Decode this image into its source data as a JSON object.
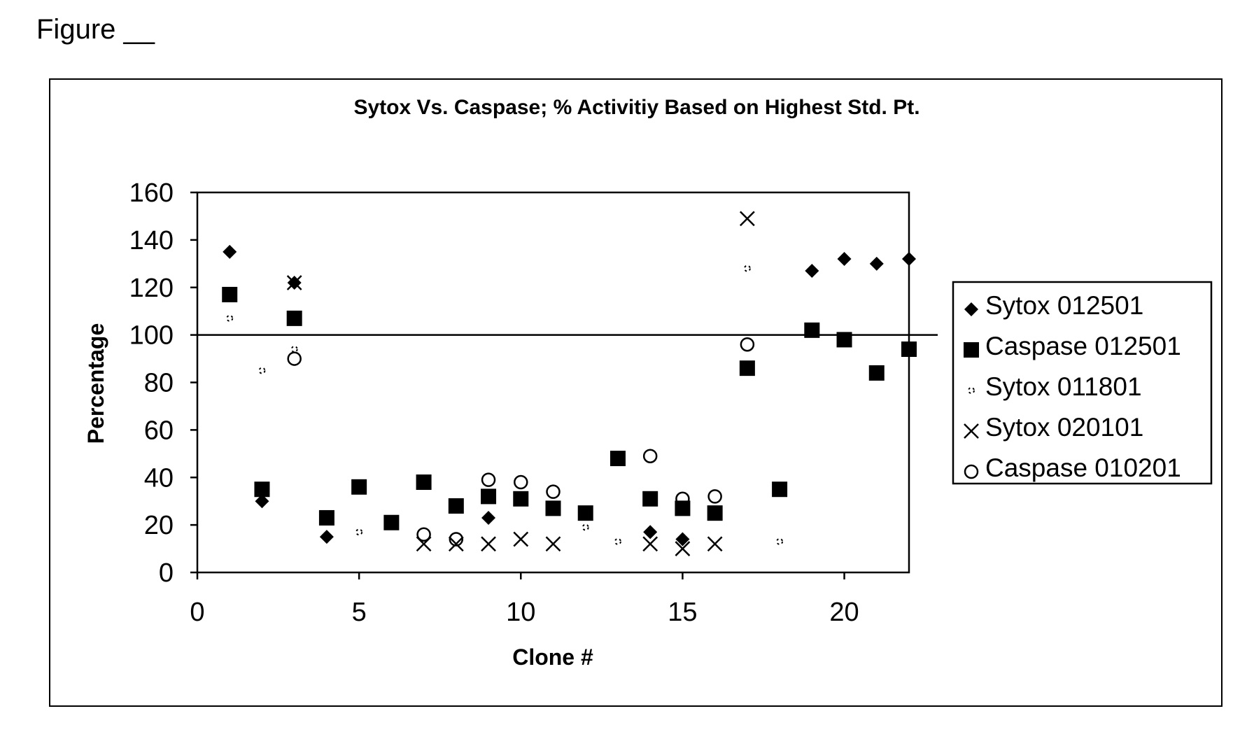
{
  "figure_label": "Figure __",
  "chart_data": {
    "type": "scatter",
    "title": "Sytox Vs. Caspase; % Activitiy Based on Highest Std. Pt.",
    "xlabel": "Clone #",
    "ylabel": "Percentage",
    "xlim": [
      0,
      22
    ],
    "ylim": [
      0,
      160
    ],
    "x_ticks": [
      0,
      5,
      10,
      15,
      20
    ],
    "y_ticks": [
      0,
      20,
      40,
      60,
      80,
      100,
      120,
      140,
      160
    ],
    "reference_line": 100,
    "grid": false,
    "legend_position": "right",
    "series": [
      {
        "name": "Sytox 012501",
        "marker": "diamond",
        "color": "#000000",
        "points": [
          [
            1,
            135
          ],
          [
            2,
            30
          ],
          [
            3,
            122
          ],
          [
            4,
            15
          ],
          [
            9,
            23
          ],
          [
            14,
            17
          ],
          [
            15,
            14
          ],
          [
            19,
            127
          ],
          [
            20,
            132
          ],
          [
            21,
            130
          ],
          [
            22,
            132
          ]
        ]
      },
      {
        "name": "Caspase 012501",
        "marker": "square",
        "color": "#000000",
        "points": [
          [
            1,
            117
          ],
          [
            2,
            35
          ],
          [
            3,
            107
          ],
          [
            4,
            23
          ],
          [
            5,
            36
          ],
          [
            6,
            21
          ],
          [
            7,
            38
          ],
          [
            8,
            28
          ],
          [
            9,
            32
          ],
          [
            10,
            31
          ],
          [
            11,
            27
          ],
          [
            12,
            25
          ],
          [
            13,
            48
          ],
          [
            14,
            31
          ],
          [
            15,
            27
          ],
          [
            16,
            25
          ],
          [
            17,
            86
          ],
          [
            18,
            35
          ],
          [
            19,
            102
          ],
          [
            20,
            98
          ],
          [
            21,
            84
          ],
          [
            22,
            94
          ]
        ]
      },
      {
        "name": "Sytox 011801",
        "marker": "dot",
        "color": "#000000",
        "points": [
          [
            1,
            107
          ],
          [
            2,
            85
          ],
          [
            3,
            94
          ],
          [
            5,
            17
          ],
          [
            6,
            22
          ],
          [
            12,
            19
          ],
          [
            13,
            13
          ],
          [
            17,
            128
          ],
          [
            18,
            13
          ]
        ]
      },
      {
        "name": "Sytox 020101",
        "marker": "x",
        "color": "#000000",
        "points": [
          [
            3,
            122
          ],
          [
            7,
            12
          ],
          [
            8,
            12
          ],
          [
            9,
            12
          ],
          [
            10,
            14
          ],
          [
            11,
            12
          ],
          [
            14,
            12
          ],
          [
            15,
            10
          ],
          [
            16,
            12
          ],
          [
            17,
            149
          ]
        ]
      },
      {
        "name": "Caspase 010201",
        "marker": "circle",
        "color": "#000000",
        "points": [
          [
            3,
            90
          ],
          [
            7,
            16
          ],
          [
            8,
            14
          ],
          [
            9,
            39
          ],
          [
            10,
            38
          ],
          [
            11,
            34
          ],
          [
            14,
            49
          ],
          [
            15,
            31
          ],
          [
            16,
            32
          ],
          [
            17,
            96
          ]
        ]
      }
    ]
  }
}
